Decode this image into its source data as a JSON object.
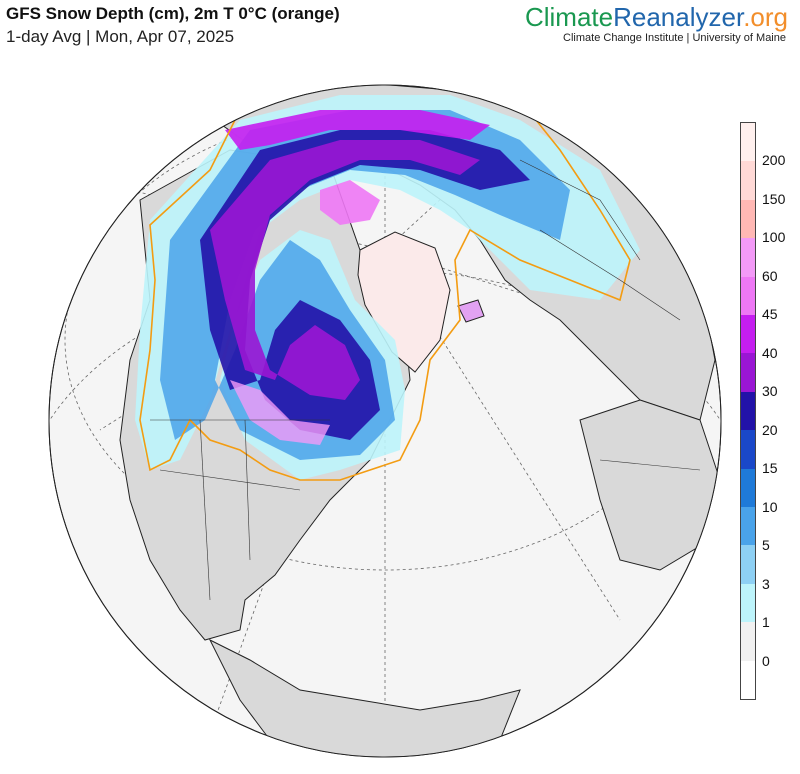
{
  "header": {
    "title": "GFS Snow Depth (cm), 2m T 0°C (orange)",
    "subtitle": "1-day Avg | Mon, Apr 07, 2025"
  },
  "brand": {
    "part1": "Climate",
    "part2": "Reanalyzer",
    "part3": ".org",
    "institution": "Climate Change Institute | University of Maine"
  },
  "legend": {
    "labels": [
      "200",
      "150",
      "100",
      "60",
      "45",
      "40",
      "30",
      "20",
      "15",
      "10",
      "5",
      "3",
      "1",
      "0"
    ],
    "colors": [
      "#fff0ee",
      "#ffd9d6",
      "#ffb8b4",
      "#f39af7",
      "#ee78f5",
      "#c51ef0",
      "#9a16d4",
      "#2212a8",
      "#1a48c9",
      "#1f7ad8",
      "#4aa3ea",
      "#8ed0f4",
      "#bdf4fb",
      "#f1f1f1",
      "#ffffff"
    ]
  },
  "map": {
    "projection": "orthographic (north-polar view)",
    "colors": {
      "ocean": "#f5f5f5",
      "land": "#d9d9d9",
      "freezing_line": "#f39c12"
    }
  }
}
